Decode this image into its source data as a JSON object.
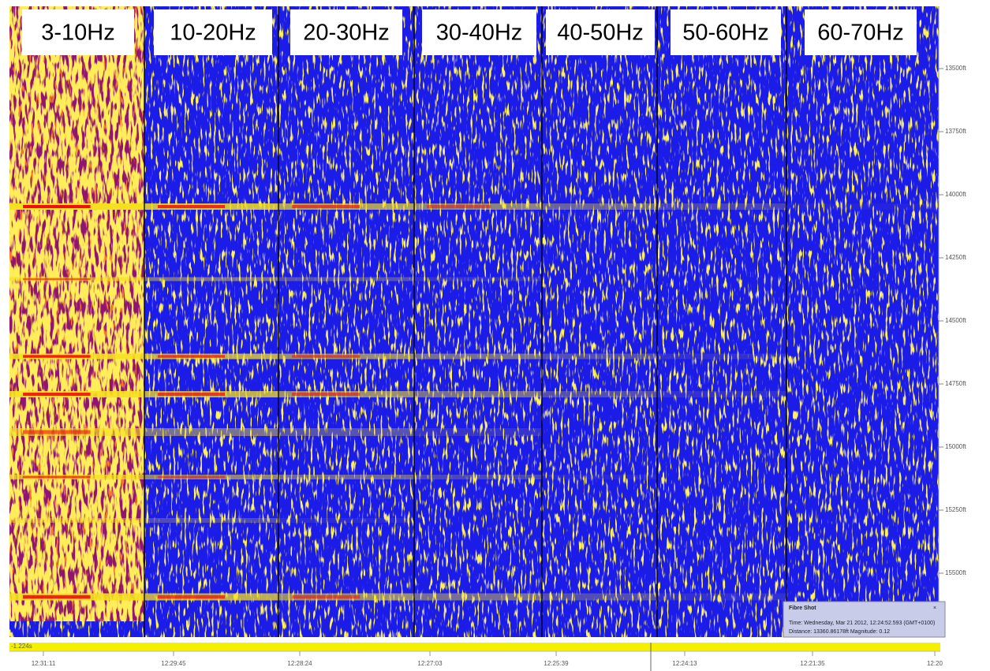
{
  "panels": {
    "labels": [
      "3-10Hz",
      "10-20Hz",
      "20-30Hz",
      "30-40Hz",
      "40-50Hz",
      "50-60Hz",
      "60-70Hz"
    ]
  },
  "depth_axis": {
    "labels": [
      "13500ft",
      "13750ft",
      "14000ft",
      "14250ft",
      "14500ft",
      "14750ft",
      "15000ft",
      "15250ft",
      "15500ft"
    ]
  },
  "tooltip": {
    "title": "Fibre Shot",
    "time": "Time: Wednesday, Mar 21 2012, 12:24:52.593 (GMT+0100)",
    "details": "Distance: 13360.86178ft  Magnitude: 0.12"
  },
  "timeline": {
    "offset": "-1.224s",
    "times": [
      "12:31:11",
      "12:29:45",
      "12:28:24",
      "12:27:03",
      "12:25:39",
      "12:24:13",
      "12:21:35",
      "12:20"
    ]
  }
}
